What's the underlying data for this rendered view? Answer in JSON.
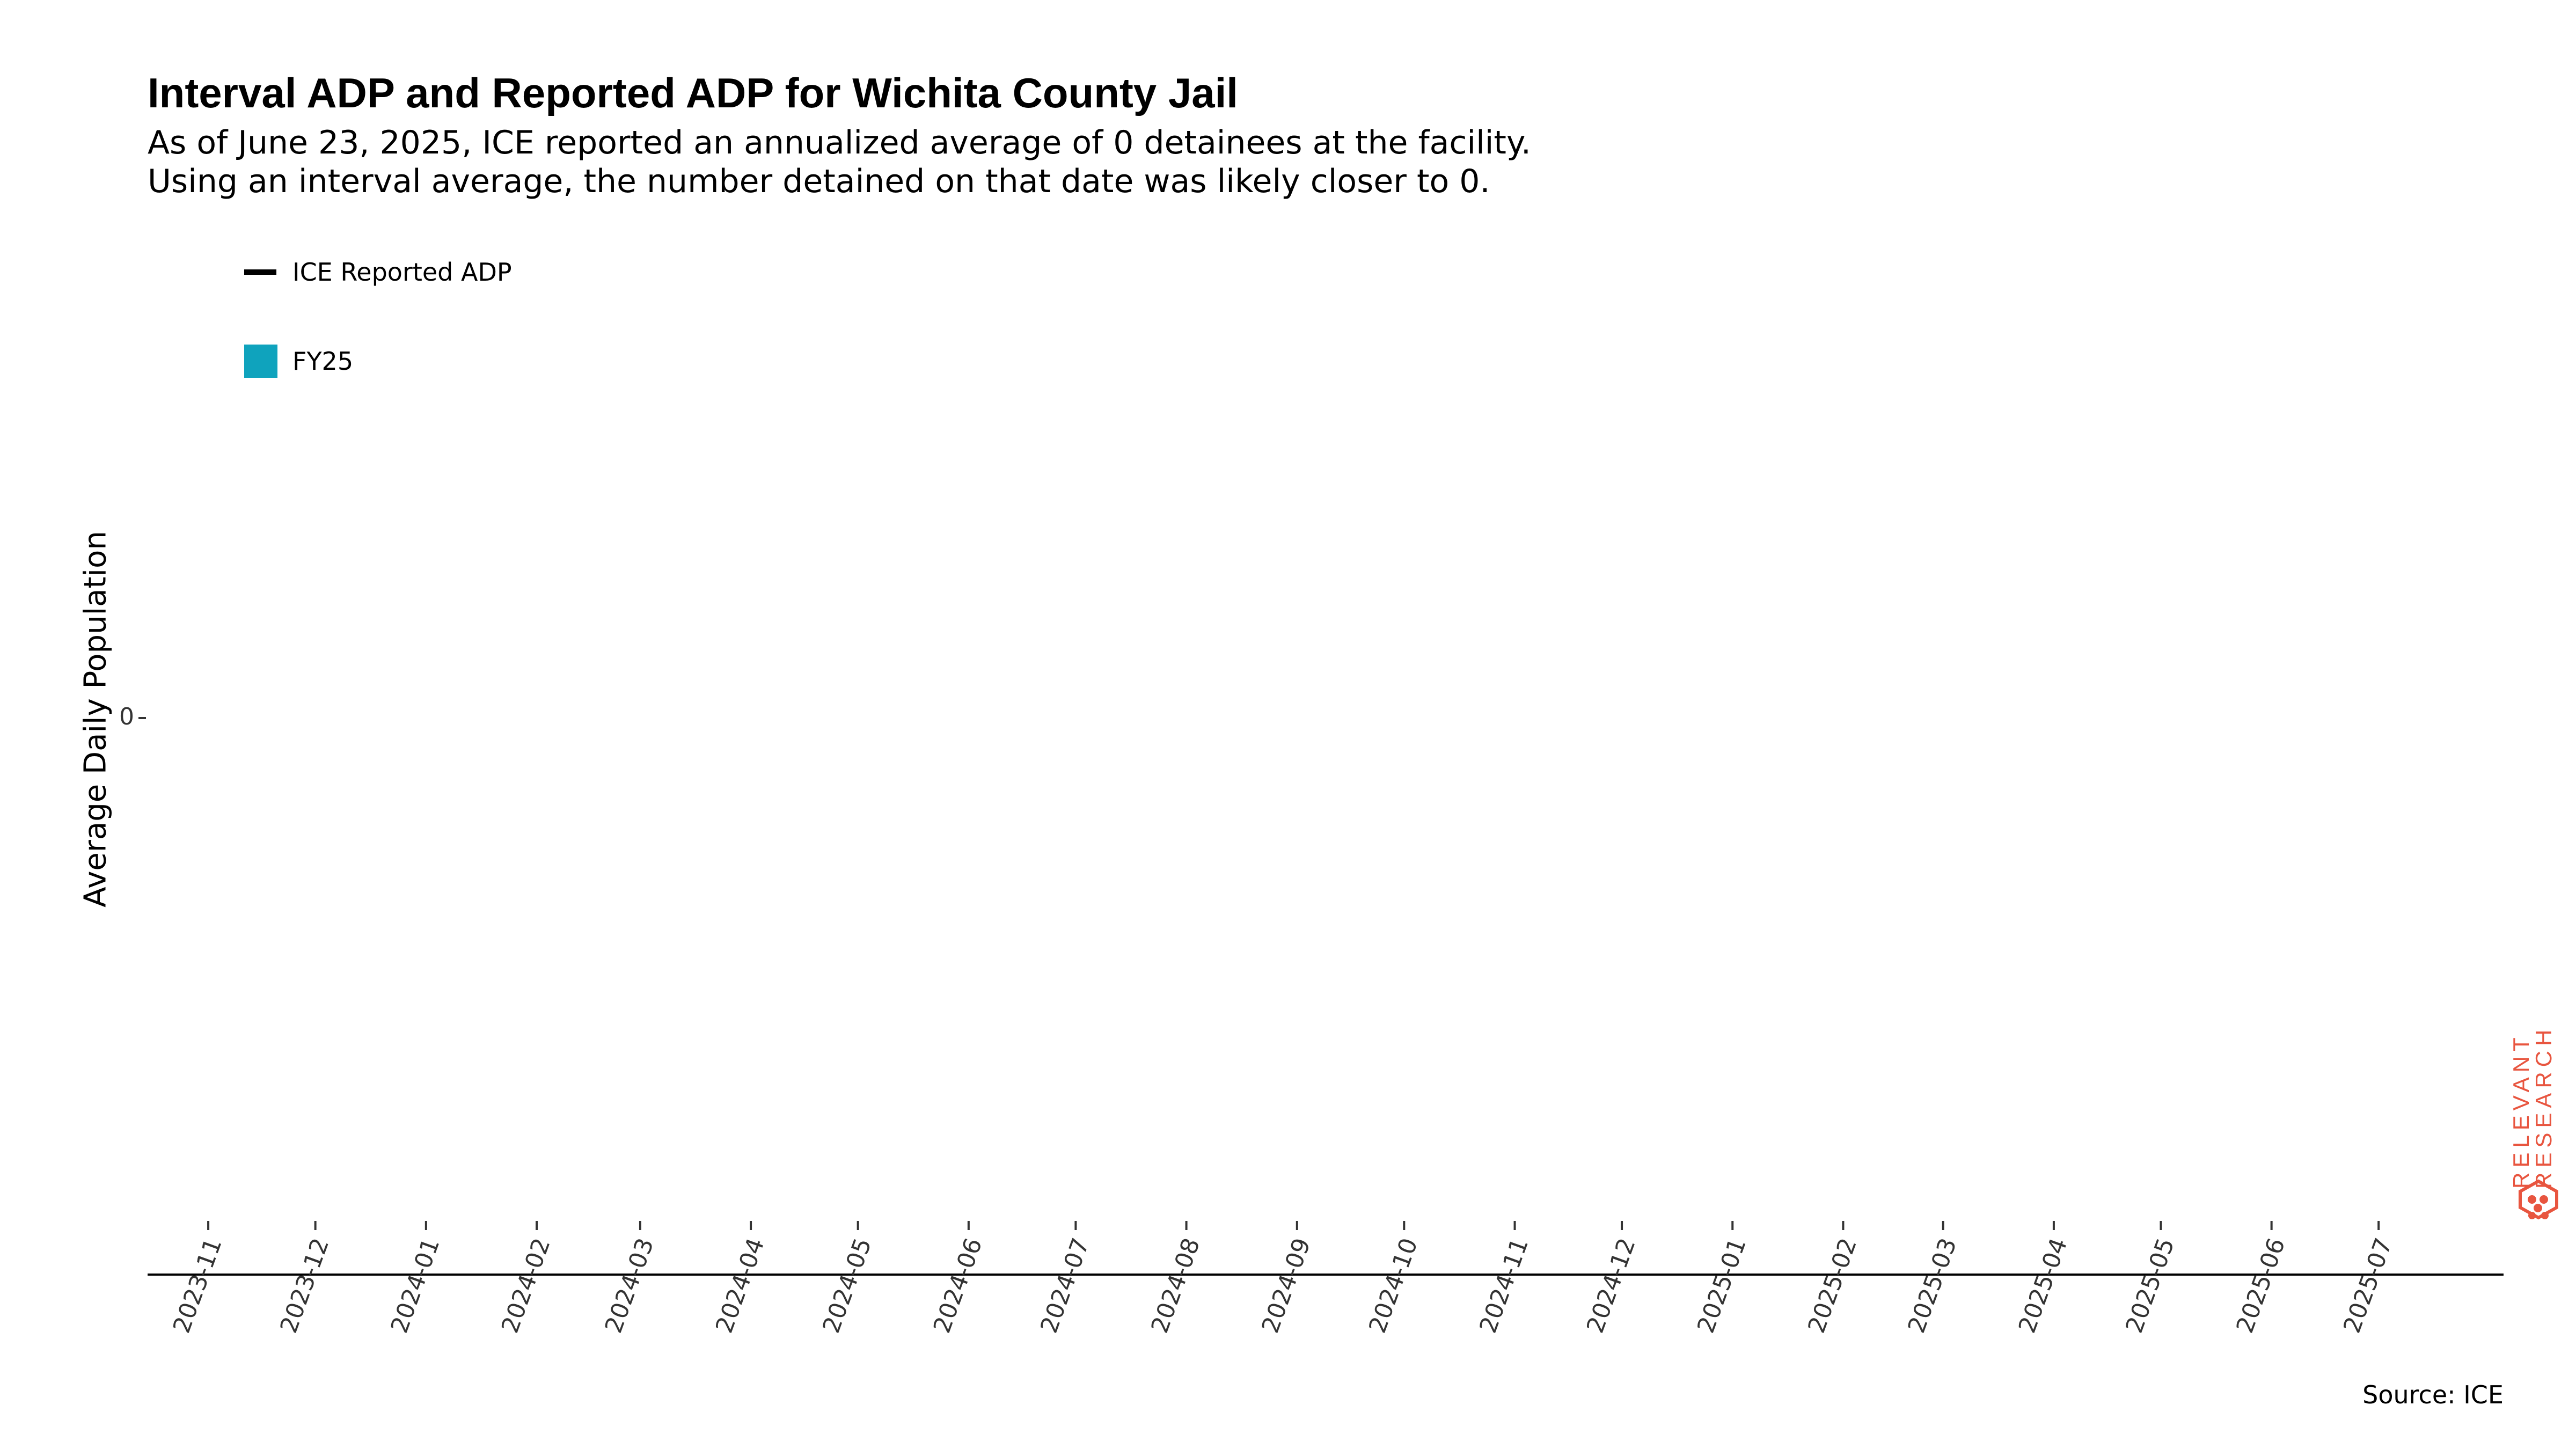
{
  "chart_data": {
    "type": "line",
    "title": "Interval ADP and Reported ADP for Wichita County Jail",
    "subtitle_lines": [
      "As of June 23, 2025, ICE reported an annualized average of 0 detainees at the facility.",
      "Using an interval average, the number detained on that date was likely closer to 0."
    ],
    "xlabel": "",
    "ylabel": "Average Daily Population",
    "x_ticks": [
      "2023-11",
      "2023-12",
      "2024-01",
      "2024-02",
      "2024-03",
      "2024-04",
      "2024-05",
      "2024-06",
      "2024-07",
      "2024-08",
      "2024-09",
      "2024-10",
      "2024-11",
      "2024-12",
      "2025-01",
      "2025-02",
      "2025-03",
      "2025-04",
      "2025-05",
      "2025-06",
      "2025-07"
    ],
    "xlim": [
      "2023-10-15",
      "2025-08-05"
    ],
    "y_ticks": [
      0
    ],
    "grid": false,
    "legend_position": "top-left",
    "series": [
      {
        "name": "ICE Reported ADP",
        "kind": "line",
        "color": "#000000",
        "values": []
      },
      {
        "name": "FY25",
        "kind": "area",
        "color": "#0fa3bd",
        "values": []
      }
    ],
    "source": "Source: ICE"
  },
  "logo": {
    "line1": "RELEVANT",
    "line2": "RESEARCH",
    "color": "#e8553f",
    "icon": "hexagon-dots-icon"
  }
}
